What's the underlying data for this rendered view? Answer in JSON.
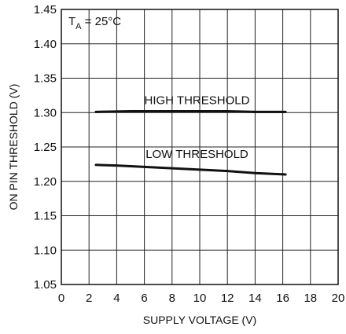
{
  "chart_data": {
    "type": "line",
    "title": "",
    "xlabel": "SUPPLY VOLTAGE (V)",
    "ylabel": "ON PIN THRESHOLD (V)",
    "xlim": [
      0,
      20
    ],
    "ylim": [
      1.05,
      1.45
    ],
    "xticks": [
      "0",
      "2",
      "4",
      "6",
      "8",
      "10",
      "12",
      "14",
      "16",
      "18",
      "20"
    ],
    "yticks": [
      "1.05",
      "1.10",
      "1.15",
      "1.20",
      "1.25",
      "1.30",
      "1.35",
      "1.40",
      "1.45"
    ],
    "grid": true,
    "annotation": {
      "prefix": "T",
      "subscript": "A",
      "suffix": " = 25°C"
    },
    "series": [
      {
        "name": "HIGH THRESHOLD",
        "x": [
          2.5,
          5,
          8,
          10,
          12,
          14,
          16.2
        ],
        "y": [
          1.301,
          1.302,
          1.302,
          1.302,
          1.302,
          1.301,
          1.301
        ]
      },
      {
        "name": "LOW THRESHOLD",
        "x": [
          2.5,
          4,
          6,
          8,
          10,
          12,
          14,
          16.2
        ],
        "y": [
          1.224,
          1.223,
          1.221,
          1.219,
          1.217,
          1.215,
          1.212,
          1.21
        ]
      }
    ]
  }
}
